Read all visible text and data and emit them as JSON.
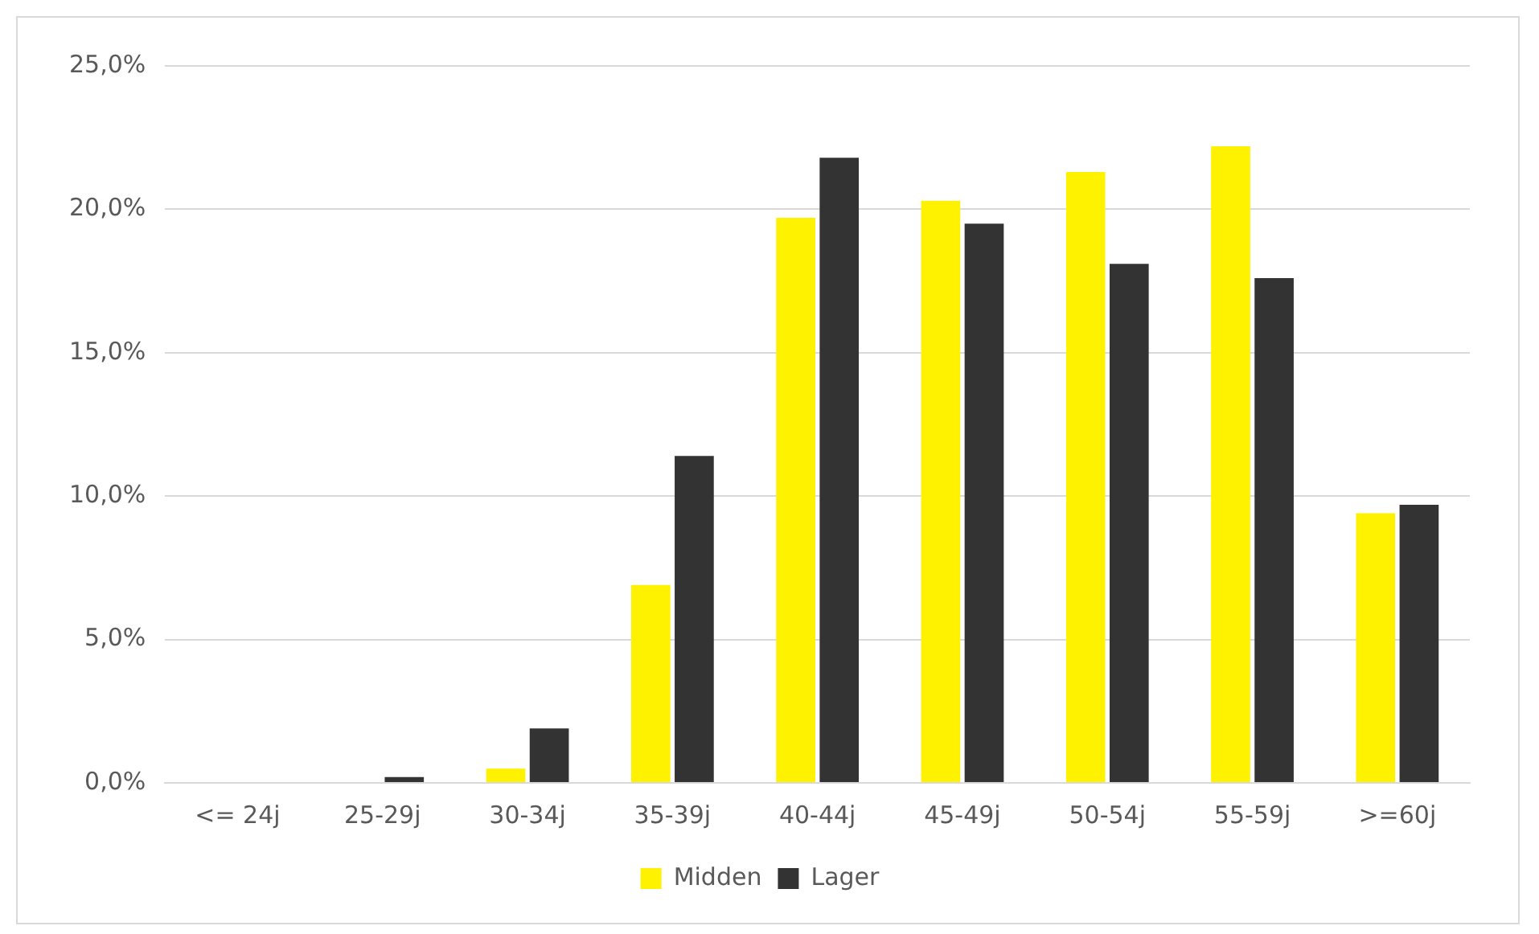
{
  "chart_data": {
    "type": "bar",
    "categories": [
      "<= 24j",
      "25-29j",
      "30-34j",
      "35-39j",
      "40-44j",
      "45-49j",
      "50-54j",
      "55-59j",
      ">=60j"
    ],
    "series": [
      {
        "name": "Midden",
        "color": "#fff200",
        "values": [
          0,
          0,
          0.5,
          6.9,
          19.7,
          20.3,
          21.3,
          22.2,
          9.4
        ]
      },
      {
        "name": "Lager",
        "color": "#333333",
        "values": [
          0,
          0.2,
          1.9,
          11.4,
          21.8,
          19.5,
          18.1,
          17.6,
          9.7
        ]
      }
    ],
    "ylim": [
      0,
      25
    ],
    "yticks": [
      {
        "value": 0,
        "label": "0,0%"
      },
      {
        "value": 5,
        "label": "5,0%"
      },
      {
        "value": 10,
        "label": "10,0%"
      },
      {
        "value": 15,
        "label": "15,0%"
      },
      {
        "value": 20,
        "label": "20,0%"
      },
      {
        "value": 25,
        "label": "25,0%"
      }
    ],
    "grid": "y",
    "legend": "bottom"
  }
}
